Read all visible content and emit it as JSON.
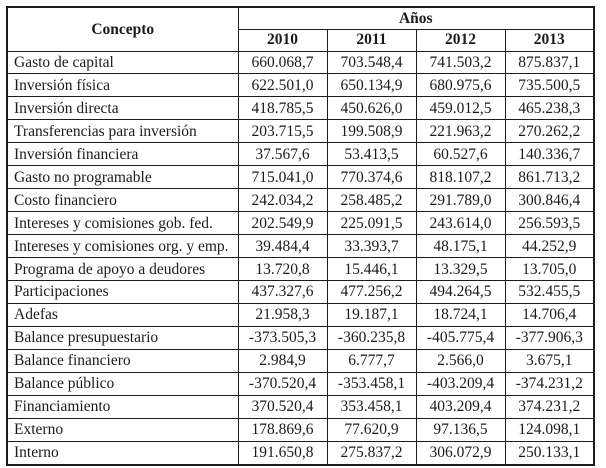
{
  "table": {
    "concept_header": "Concepto",
    "years_group_header": "Años",
    "years": [
      "2010",
      "2011",
      "2012",
      "2013"
    ],
    "rows": [
      {
        "label": "Gasto de capital",
        "values": [
          "660.068,7",
          "703.548,4",
          "741.503,2",
          "875.837,1"
        ]
      },
      {
        "label": "Inversión física",
        "values": [
          "622.501,0",
          "650.134,9",
          "680.975,6",
          "735.500,5"
        ]
      },
      {
        "label": "Inversión directa",
        "values": [
          "418.785,5",
          "450.626,0",
          "459.012,5",
          "465.238,3"
        ]
      },
      {
        "label": "Transferencias para inversión",
        "values": [
          "203.715,5",
          "199.508,9",
          "221.963,2",
          "270.262,2"
        ]
      },
      {
        "label": "Inversión financiera",
        "values": [
          "37.567,6",
          "53.413,5",
          "60.527,6",
          "140.336,7"
        ]
      },
      {
        "label": "Gasto no programable",
        "values": [
          "715.041,0",
          "770.374,6",
          "818.107,2",
          "861.713,2"
        ]
      },
      {
        "label": "Costo financiero",
        "values": [
          "242.034,2",
          "258.485,2",
          "291.789,0",
          "300.846,4"
        ]
      },
      {
        "label": "Intereses y comisiones gob. fed.",
        "values": [
          "202.549,9",
          "225.091,5",
          "243.614,0",
          "256.593,5"
        ]
      },
      {
        "label": "Intereses y comisiones org. y emp.",
        "values": [
          "39.484,4",
          "33.393,7",
          "48.175,1",
          "44.252,9"
        ]
      },
      {
        "label": "Programa de apoyo a deudores",
        "values": [
          "13.720,8",
          "15.446,1",
          "13.329,5",
          "13.705,0"
        ]
      },
      {
        "label": "Participaciones",
        "values": [
          "437.327,6",
          "477.256,2",
          "494.264,5",
          "532.455,5"
        ]
      },
      {
        "label": "Adefas",
        "values": [
          "21.958,3",
          "19.187,1",
          "18.724,1",
          "14.706,4"
        ]
      },
      {
        "label": "Balance presupuestario",
        "values": [
          "-373.505,3",
          "-360.235,8",
          "-405.775,4",
          "-377.906,3"
        ]
      },
      {
        "label": "Balance financiero",
        "values": [
          "2.984,9",
          "6.777,7",
          "2.566,0",
          "3.675,1"
        ]
      },
      {
        "label": "Balance público",
        "values": [
          "-370.520,4",
          "-353.458,1",
          "-403.209,4",
          "-374.231,2"
        ]
      },
      {
        "label": "Financiamiento",
        "values": [
          "370.520,4",
          "353.458,1",
          "403.209,4",
          "374.231,2"
        ]
      },
      {
        "label": "Externo",
        "values": [
          "178.869,6",
          "77.620,9",
          "97.136,5",
          "124.098,1"
        ]
      },
      {
        "label": "Interno",
        "values": [
          "191.650,8",
          "275.837,2",
          "306.072,9",
          "250.133,1"
        ]
      }
    ],
    "colors": {
      "border": "#1c1c1c",
      "text": "#1b1b1b",
      "background": "#ffffff"
    }
  }
}
